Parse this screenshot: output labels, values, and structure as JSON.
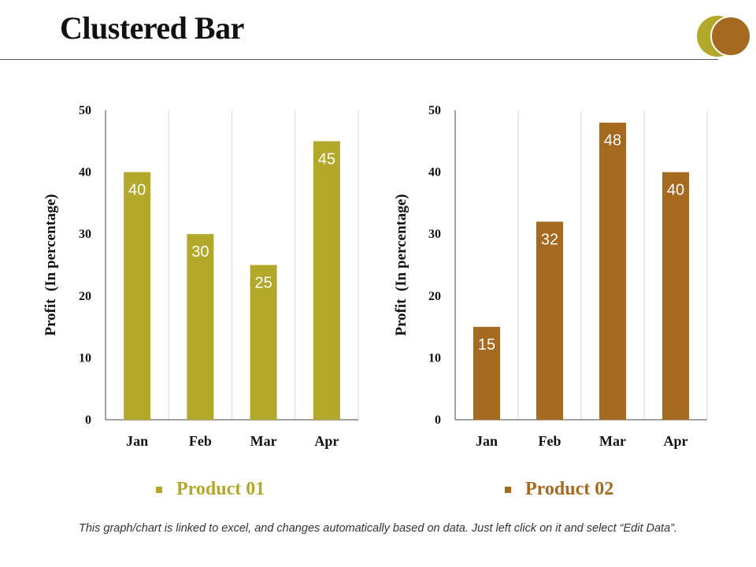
{
  "page": {
    "title": "Clustered Bar",
    "footnote": "This graph/chart is linked to excel, and changes automatically based on data. Just left click on it and select “Edit Data”."
  },
  "colors": {
    "product01": "#b3a82a",
    "product02": "#a5691f",
    "axis": "#444444",
    "grid": "#d9d9d9",
    "label_text": "#ffffff"
  },
  "chart_data": [
    {
      "type": "bar",
      "title": "",
      "series_name": "Product 01",
      "categories": [
        "Jan",
        "Feb",
        "Mar",
        "Apr"
      ],
      "values": [
        40,
        30,
        25,
        45
      ],
      "ylabel": "Profit  (In percentage)",
      "xlabel": "",
      "ylim": [
        0,
        50
      ],
      "yticks": [
        0,
        10,
        20,
        30,
        40,
        50
      ],
      "grid": "vertical category separators",
      "data_labels": true,
      "legend": "bottom"
    },
    {
      "type": "bar",
      "title": "",
      "series_name": "Product 02",
      "categories": [
        "Jan",
        "Feb",
        "Mar",
        "Apr"
      ],
      "values": [
        15,
        32,
        48,
        40
      ],
      "ylabel": "Profit  (In percentage)",
      "xlabel": "",
      "ylim": [
        0,
        50
      ],
      "yticks": [
        0,
        10,
        20,
        30,
        40,
        50
      ],
      "grid": "vertical category separators",
      "data_labels": true,
      "legend": "bottom"
    }
  ]
}
